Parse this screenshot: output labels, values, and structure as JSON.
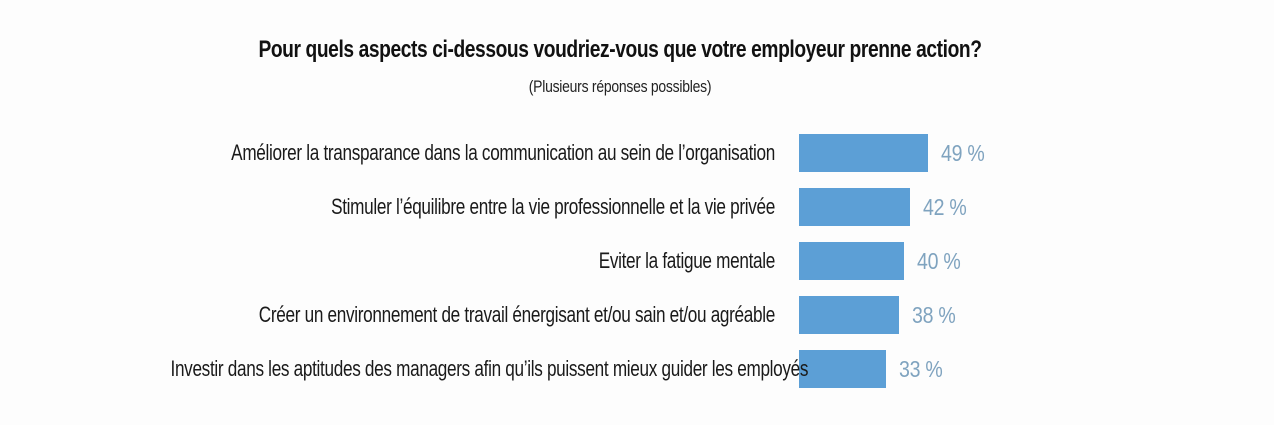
{
  "chart": {
    "title": "Pour quels aspects ci-dessous voudriez-vous que votre employeur prenne action?",
    "subtitle": "(Plusieurs réponses possibles)"
  },
  "chart_data": {
    "type": "bar",
    "orientation": "horizontal",
    "title": "Pour quels aspects ci-dessous voudriez-vous que votre employeur prenne action?",
    "subtitle": "(Plusieurs réponses possibles)",
    "categories": [
      "Améliorer la transparance dans la communication au sein de l’organisation",
      "Stimuler l’équilibre entre la vie professionnelle et la vie privée",
      "Eviter la fatigue mentale",
      "Créer un environnement de travail énergisant et/ou sain et/ou agréable",
      "Investir dans les aptitudes des managers afin qu’ils puissent mieux guider les employés"
    ],
    "values": [
      49,
      42,
      40,
      38,
      33
    ],
    "value_labels": [
      "49 %",
      "42 %",
      "40 %",
      "38 %",
      "33 %"
    ],
    "unit": "%",
    "xlim": [
      0,
      100
    ],
    "grid": false,
    "legend": false,
    "bar_color": "#5c9fd6",
    "value_label_color": "#7fa3bf",
    "label_color": "#1a1a1a",
    "background_color": "#fdfdfd"
  }
}
